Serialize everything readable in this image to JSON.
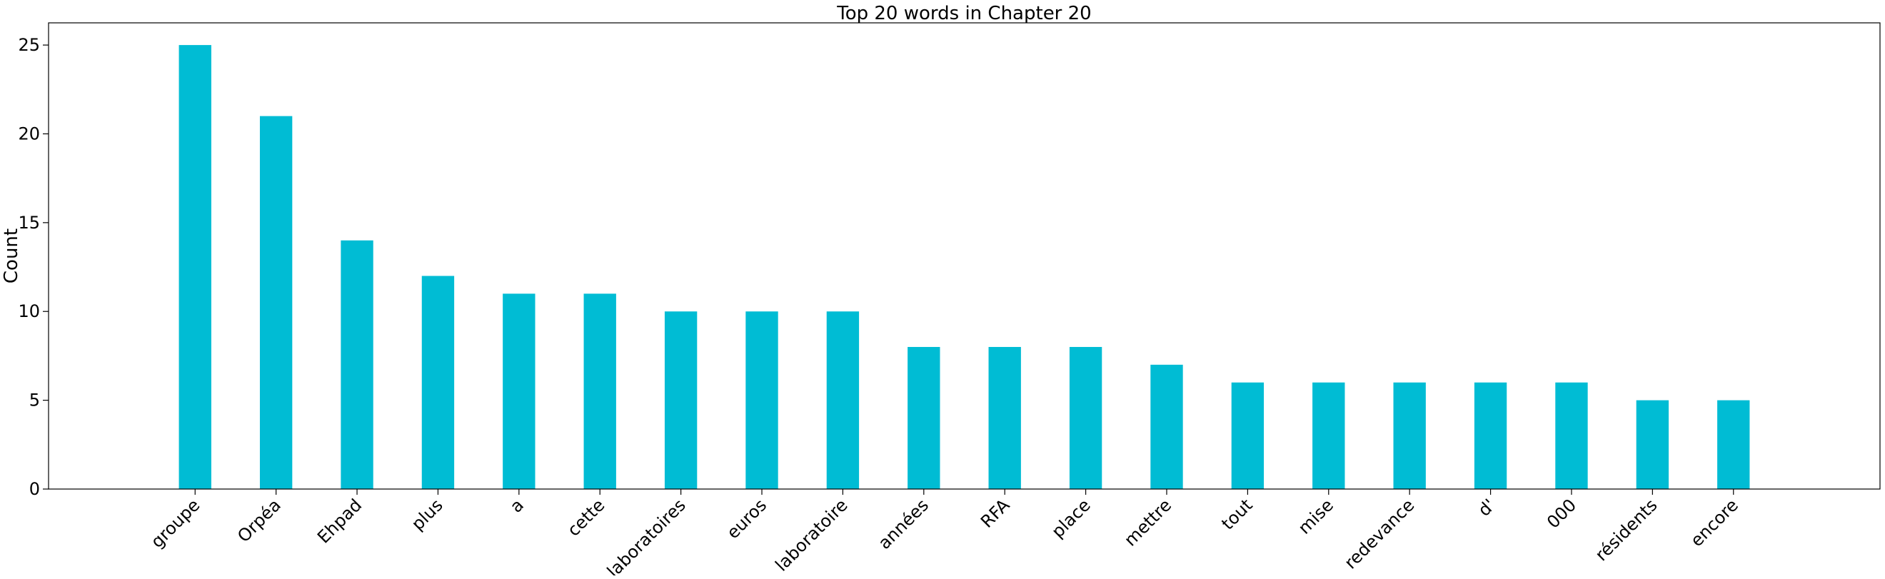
{
  "chart_data": {
    "type": "bar",
    "title": "Top 20 words in Chapter 20",
    "xlabel": "",
    "ylabel": "Count",
    "categories": [
      "groupe",
      "Orpéa",
      "Ehpad",
      "plus",
      "a",
      "cette",
      "laboratoires",
      "euros",
      "laboratoire",
      "années",
      "RFA",
      "place",
      "mettre",
      "tout",
      "mise",
      "redevance",
      "d'",
      "000",
      "résidents",
      "encore"
    ],
    "values": [
      25,
      21,
      14,
      12,
      11,
      11,
      10,
      10,
      10,
      8,
      8,
      8,
      7,
      6,
      6,
      6,
      6,
      6,
      5,
      5
    ],
    "ylim": [
      0,
      26.25
    ],
    "yticks": [
      0,
      5,
      10,
      15,
      20,
      25
    ],
    "bar_color": "#00bcd4",
    "grid": false,
    "legend": "none"
  }
}
